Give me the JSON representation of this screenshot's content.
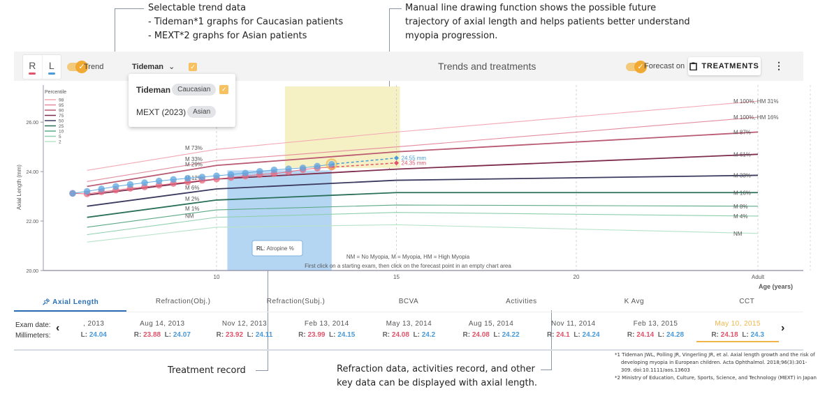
{
  "annotations": {
    "trend_title": "Selectable trend data",
    "trend_line1": "- Tideman*1 graphs for Caucasian patients",
    "trend_line2": "- MEXT*2 graphs for Asian patients",
    "manual_line1": "Manual line drawing function shows the possible future",
    "manual_line2": "trajectory of axial length and helps patients better understand",
    "manual_line3": "myopia progression.",
    "treatment": "Treatment record",
    "refraction_line1": "Refraction data, activities record, and other",
    "refraction_line2": "key data can be displayed with axial length."
  },
  "toolbar": {
    "eye_r": "R",
    "eye_l": "L",
    "trend_label": "Trend",
    "dataset_selected": "Tideman",
    "title": "Trends and treatments",
    "forecast_label": "Forecast on",
    "treatments_button": "TREATMENTS",
    "more_icon": "⋮",
    "colors": {
      "right": "#e0536a",
      "left": "#4a9ad8",
      "accent": "#f0a933"
    }
  },
  "dropdown": {
    "options": [
      {
        "label": "Tideman",
        "chip": "Caucasian",
        "checked": true
      },
      {
        "label": "MEXT (2023)",
        "chip": "Asian",
        "checked": false
      }
    ]
  },
  "chart_data": {
    "type": "line",
    "title": "",
    "xlabel": "Age (years)",
    "ylabel": "Axial Length (mm)",
    "xlim": [
      6,
      21
    ],
    "ylim": [
      20,
      27.5
    ],
    "x_ticks": [
      {
        "v": 10,
        "label": "10"
      },
      {
        "v": 15,
        "label": "15"
      },
      {
        "v": 20,
        "label": "20"
      },
      {
        "v": 25,
        "label": "Adult"
      }
    ],
    "y_ticks": [
      "20.00",
      "22.00",
      "24.00",
      "26.00"
    ],
    "legend_title": "Percentile",
    "percentiles": [
      {
        "name": "98",
        "color": "#f2a7b3",
        "points": [
          [
            6.4,
            24.05
          ],
          [
            10,
            24.9
          ],
          [
            15,
            25.6
          ],
          [
            25,
            26.85
          ]
        ],
        "left_label": "M 73%",
        "right_label": "M 100%, HM 31%"
      },
      {
        "name": "95",
        "color": "#e38c9e",
        "points": [
          [
            6.4,
            23.6
          ],
          [
            10,
            24.45
          ],
          [
            15,
            25.0
          ],
          [
            25,
            26.2
          ]
        ],
        "left_label": "M 33%",
        "right_label": "M 100%, HM 16%"
      },
      {
        "name": "90",
        "color": "#b95a72",
        "points": [
          [
            6.4,
            23.4
          ],
          [
            10,
            24.25
          ],
          [
            15,
            24.8
          ],
          [
            25,
            25.6
          ]
        ],
        "left_label": "M 29%",
        "right_label": "M 87%"
      },
      {
        "name": "75",
        "color": "#7d2c4c",
        "points": [
          [
            6.4,
            23.05
          ],
          [
            10,
            23.7
          ],
          [
            15,
            24.1
          ],
          [
            25,
            24.7
          ]
        ],
        "left_label": "M 12%",
        "right_label": "M 61%"
      },
      {
        "name": "50",
        "color": "#3b3a5e",
        "points": [
          [
            6.4,
            22.6
          ],
          [
            10,
            23.3
          ],
          [
            15,
            23.65
          ],
          [
            25,
            23.85
          ]
        ],
        "left_label": "M 6%",
        "right_label": "M 33%"
      },
      {
        "name": "25",
        "color": "#2a6f5a",
        "points": [
          [
            6.4,
            22.15
          ],
          [
            10,
            22.85
          ],
          [
            15,
            23.15
          ],
          [
            25,
            23.15
          ]
        ],
        "left_label": "M 2%",
        "right_label": "M 16%"
      },
      {
        "name": "10",
        "color": "#5aa886",
        "points": [
          [
            6.4,
            21.75
          ],
          [
            10,
            22.45
          ],
          [
            15,
            22.65
          ],
          [
            25,
            22.6
          ]
        ],
        "left_label": "M 1%",
        "right_label": "M 8%"
      },
      {
        "name": "5",
        "color": "#8fcfae",
        "points": [
          [
            6.4,
            21.45
          ],
          [
            10,
            22.15
          ],
          [
            15,
            22.35
          ],
          [
            25,
            22.2
          ]
        ],
        "left_label": "NM",
        "right_label": "M 4%"
      },
      {
        "name": "2",
        "color": "#b6e2c8",
        "points": [
          [
            6.4,
            21.15
          ],
          [
            10,
            21.75
          ],
          [
            15,
            21.85
          ],
          [
            25,
            21.5
          ]
        ],
        "left_label": "",
        "right_label": "NM"
      }
    ],
    "series": [
      {
        "name": "R",
        "color": "#e8687f",
        "x": [
          6.0,
          6.4,
          6.8,
          7.2,
          7.6,
          8.0,
          8.4,
          8.8,
          9.2,
          9.6,
          10.0,
          10.4,
          10.8,
          11.2,
          11.6,
          12.0,
          12.4,
          12.8,
          13.2
        ],
        "y": [
          23.12,
          23.1,
          23.18,
          23.25,
          23.32,
          23.38,
          23.45,
          23.52,
          23.58,
          23.65,
          23.7,
          23.76,
          23.82,
          23.88,
          23.92,
          23.99,
          24.08,
          24.14,
          24.18
        ]
      },
      {
        "name": "L",
        "color": "#5ea6e0",
        "x": [
          6.0,
          6.4,
          6.8,
          7.2,
          7.6,
          8.0,
          8.4,
          8.8,
          9.2,
          9.6,
          10.0,
          10.4,
          10.8,
          11.2,
          11.6,
          12.0,
          12.4,
          12.8,
          13.2
        ],
        "y": [
          23.12,
          23.2,
          23.3,
          23.4,
          23.48,
          23.55,
          23.62,
          23.68,
          23.73,
          23.78,
          23.83,
          23.88,
          23.94,
          24.01,
          24.07,
          24.11,
          24.15,
          24.22,
          24.3
        ]
      }
    ],
    "forecast": [
      {
        "eye": "L",
        "from": [
          13.2,
          24.3
        ],
        "to": [
          15,
          24.55
        ],
        "label": "24.55 mm",
        "color": "#4a9ad8"
      },
      {
        "eye": "R",
        "from": [
          13.2,
          24.18
        ],
        "to": [
          15,
          24.35
        ],
        "label": "24.35 mm",
        "color": "#e0536a"
      }
    ],
    "treatment_band": {
      "x": [
        10.3,
        13.2
      ],
      "label_bold": "RL",
      "label_rest": ": Atropine %",
      "color": "#b5d6f2"
    },
    "forecast_band": {
      "x": [
        11.9,
        15.1
      ],
      "color": "#f6f1c5"
    },
    "notes": [
      "NM = No Myopia, M = Myopia, HM = High Myopia",
      "First click on a starting exam, then click on the forecast point in an empty chart area"
    ]
  },
  "tabs": [
    {
      "label": "Axial Length",
      "active": true
    },
    {
      "label": "Refraction(Obj.)",
      "active": false
    },
    {
      "label": "Refraction(Subj.)",
      "active": false
    },
    {
      "label": "BCVA",
      "active": false
    },
    {
      "label": "Activities",
      "active": false
    },
    {
      "label": "K Avg",
      "active": false
    },
    {
      "label": "CCT",
      "active": false
    }
  ],
  "exams": {
    "date_label": "Exam date:",
    "mm_label": "Millimeters:",
    "items": [
      {
        "date": ", 2013",
        "r": "",
        "l": "24.04"
      },
      {
        "date": "Aug 14, 2013",
        "r": "23.88",
        "l": "24.07"
      },
      {
        "date": "Nov 12, 2013",
        "r": "23.92",
        "l": "24.11"
      },
      {
        "date": "Feb 13, 2014",
        "r": "23.99",
        "l": "24.15"
      },
      {
        "date": "May 13, 2014",
        "r": "24.08",
        "l": "24.2"
      },
      {
        "date": "Aug 15, 2014",
        "r": "24.08",
        "l": "24.22"
      },
      {
        "date": "Nov 11, 2014",
        "r": "24.1",
        "l": "24.24"
      },
      {
        "date": "Feb 13, 2015",
        "r": "24.14",
        "l": "24.28"
      },
      {
        "date": "May 10, 2015",
        "r": "24.18",
        "l": "24.3",
        "selected": true
      }
    ]
  },
  "references": {
    "ref1": "*1 Tideman JWL, Polling JR, Vingerling JR, et al. Axial length growth and the risk of developing myopia in European children. Acta Ophthalmol. 2018;96(3):301-309. doi:10.1111/aos.13603",
    "ref2": "*2 Ministry of Education, Culture, Sports, Science, and Technology (MEXT) in Japan"
  }
}
